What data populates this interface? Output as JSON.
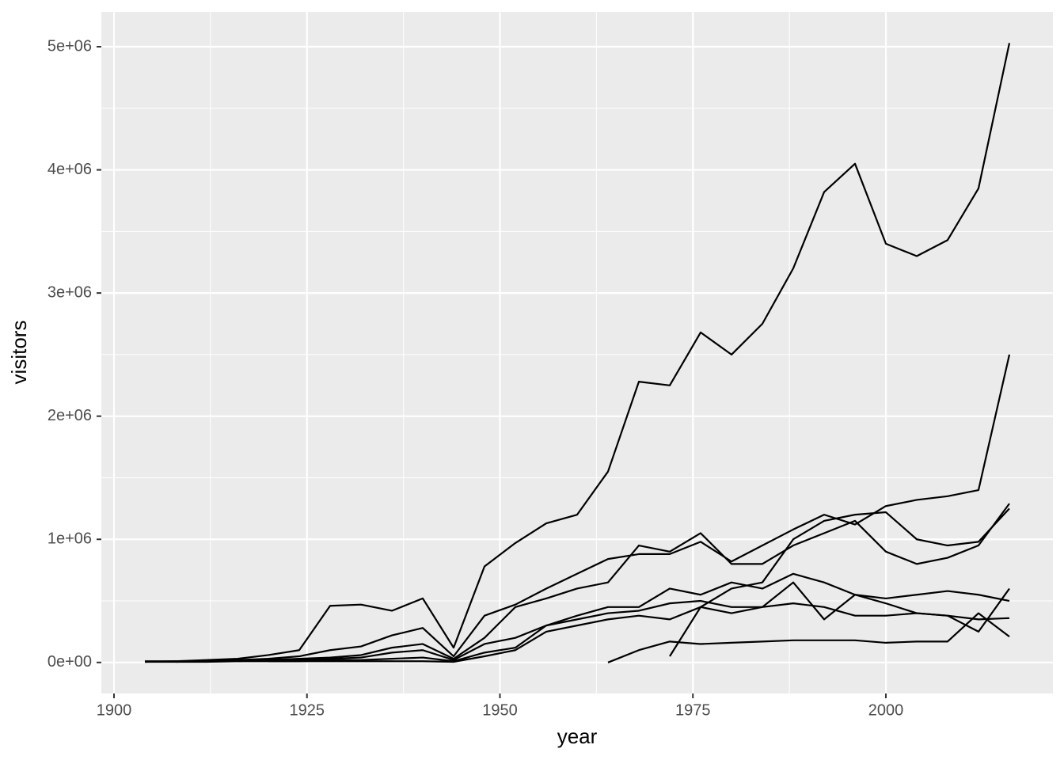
{
  "chart_data": {
    "type": "line",
    "x_label": "year",
    "y_label": "visitors",
    "x": [
      1904,
      1908,
      1912,
      1916,
      1920,
      1924,
      1928,
      1932,
      1936,
      1940,
      1944,
      1948,
      1952,
      1956,
      1960,
      1964,
      1968,
      1972,
      1976,
      1980,
      1984,
      1988,
      1992,
      1996,
      2000,
      2004,
      2008,
      2012,
      2016
    ],
    "series": [
      {
        "color": "#000000",
        "values": [
          10000,
          10000,
          20000,
          30000,
          60000,
          100000,
          460000,
          470000,
          420000,
          520000,
          120000,
          780000,
          970000,
          1130000,
          1200000,
          1550000,
          2280000,
          2250000,
          2680000,
          2500000,
          2750000,
          3200000,
          3820000,
          4050000,
          3400000,
          3300000,
          3430000,
          3850000,
          5030000
        ]
      },
      {
        "color": "#000000",
        "values": [
          5000,
          10000,
          10000,
          20000,
          30000,
          50000,
          100000,
          130000,
          220000,
          280000,
          50000,
          380000,
          470000,
          600000,
          720000,
          840000,
          880000,
          880000,
          980000,
          820000,
          950000,
          1080000,
          1200000,
          1120000,
          1270000,
          1320000,
          1350000,
          1400000,
          2500000
        ]
      },
      {
        "color": "#000000",
        "values": [
          null,
          5000,
          10000,
          20000,
          20000,
          30000,
          40000,
          60000,
          120000,
          150000,
          30000,
          200000,
          450000,
          520000,
          600000,
          650000,
          950000,
          900000,
          1050000,
          800000,
          800000,
          950000,
          1050000,
          1150000,
          900000,
          800000,
          850000,
          950000,
          1290000
        ]
      },
      {
        "color": "#000000",
        "values": [
          null,
          null,
          null,
          null,
          null,
          null,
          null,
          null,
          null,
          null,
          null,
          null,
          null,
          null,
          null,
          null,
          null,
          50000,
          450000,
          600000,
          650000,
          1000000,
          1150000,
          1200000,
          1220000,
          1000000,
          950000,
          980000,
          1250000
        ]
      },
      {
        "color": "#000000",
        "values": [
          5000,
          5000,
          5000,
          10000,
          20000,
          20000,
          30000,
          40000,
          80000,
          100000,
          20000,
          150000,
          200000,
          300000,
          380000,
          450000,
          450000,
          600000,
          550000,
          650000,
          600000,
          720000,
          650000,
          550000,
          520000,
          550000,
          580000,
          550000,
          500000
        ]
      },
      {
        "color": "#000000",
        "values": [
          null,
          null,
          null,
          null,
          10000,
          10000,
          20000,
          20000,
          30000,
          40000,
          10000,
          80000,
          120000,
          300000,
          350000,
          400000,
          420000,
          480000,
          500000,
          450000,
          450000,
          650000,
          350000,
          550000,
          480000,
          400000,
          380000,
          250000,
          600000
        ]
      },
      {
        "color": "#000000",
        "values": [
          null,
          null,
          null,
          10000,
          10000,
          10000,
          10000,
          10000,
          10000,
          10000,
          5000,
          50000,
          100000,
          250000,
          300000,
          350000,
          380000,
          350000,
          450000,
          400000,
          450000,
          480000,
          450000,
          380000,
          380000,
          400000,
          380000,
          350000,
          360000
        ]
      },
      {
        "color": "#000000",
        "values": [
          null,
          null,
          null,
          null,
          null,
          null,
          null,
          null,
          null,
          null,
          null,
          null,
          null,
          null,
          null,
          0,
          100000,
          170000,
          150000,
          160000,
          170000,
          180000,
          180000,
          180000,
          160000,
          170000,
          170000,
          400000,
          210000
        ]
      }
    ],
    "xlim": [
      1898.36,
      2021.64
    ],
    "xticks": [
      1900,
      1925,
      1950,
      1975,
      2000
    ],
    "ylim": [
      -252000,
      5283000
    ],
    "yticks": [
      {
        "value": 0,
        "label": "0e+00"
      },
      {
        "value": 1000000,
        "label": "1e+06"
      },
      {
        "value": 2000000,
        "label": "2e+06"
      },
      {
        "value": 3000000,
        "label": "3e+06"
      },
      {
        "value": 4000000,
        "label": "4e+06"
      },
      {
        "value": 5000000,
        "label": "5e+06"
      }
    ],
    "grid": true
  }
}
